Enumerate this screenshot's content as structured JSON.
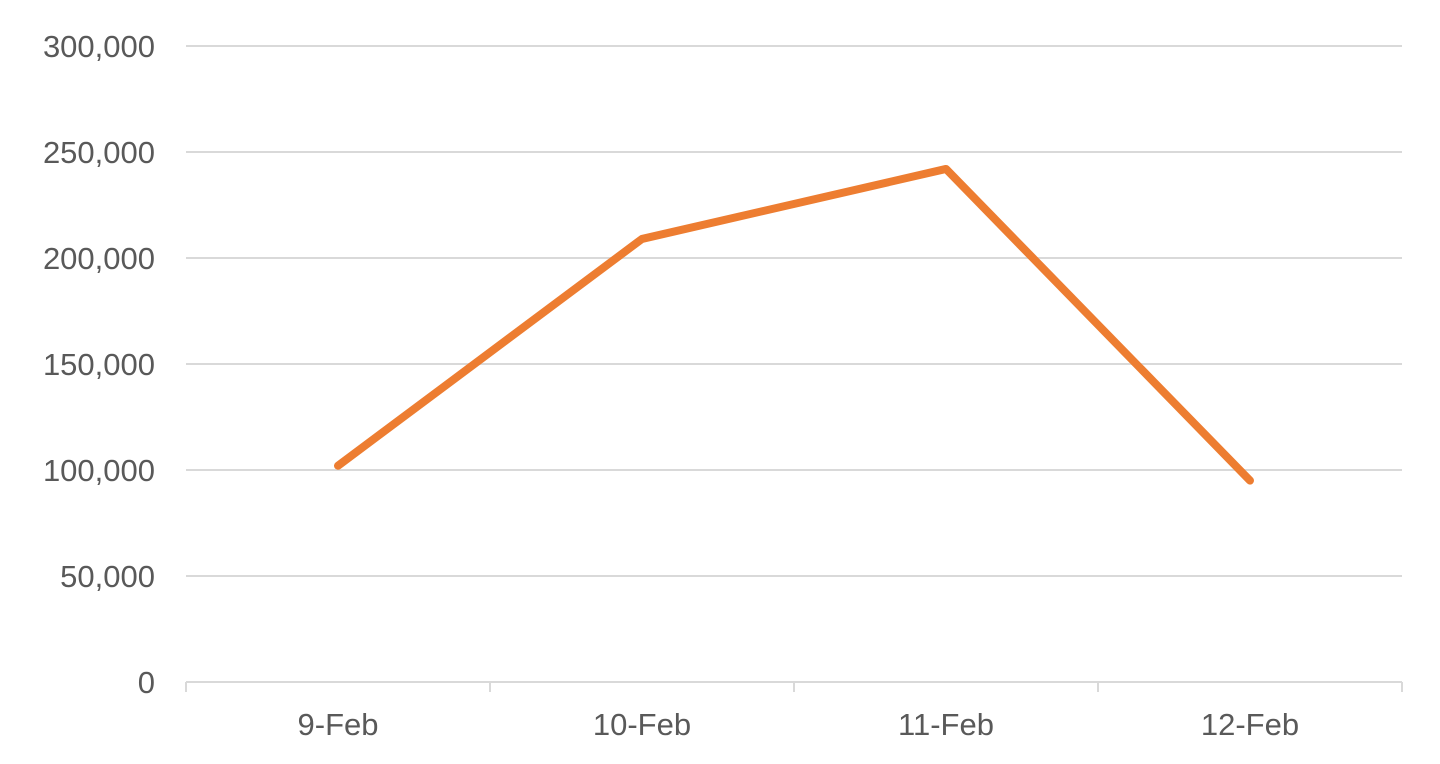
{
  "chart_data": {
    "type": "line",
    "title": "",
    "xlabel": "",
    "ylabel": "",
    "categories": [
      "9-Feb",
      "10-Feb",
      "11-Feb",
      "12-Feb"
    ],
    "series": [
      {
        "values": [
          102000,
          209000,
          242000,
          95000
        ],
        "color": "#ED7D31"
      }
    ],
    "ylim": [
      0,
      300000
    ],
    "yticks": [
      0,
      50000,
      100000,
      150000,
      200000,
      250000,
      300000
    ],
    "ytick_labels": [
      "0",
      "50,000",
      "100,000",
      "150,000",
      "200,000",
      "250,000",
      "300,000"
    ],
    "grid": true,
    "legend": "none",
    "gridline_color": "#D9D9D9",
    "tick_label_color": "#595959"
  }
}
